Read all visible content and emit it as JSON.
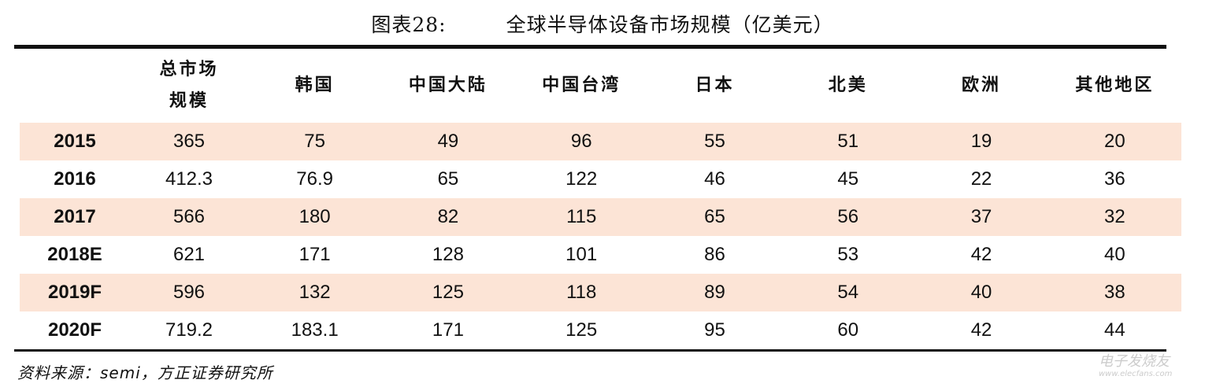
{
  "title": {
    "label": "图表28:",
    "text": "全球半导体设备市场规模（亿美元）"
  },
  "table": {
    "headers": [
      "",
      "总市场规模",
      "韩国",
      "中国大陆",
      "中国台湾",
      "日本",
      "北美",
      "欧洲",
      "其他地区"
    ],
    "rows": [
      [
        "2015",
        "365",
        "75",
        "49",
        "96",
        "55",
        "51",
        "19",
        "20"
      ],
      [
        "2016",
        "412.3",
        "76.9",
        "65",
        "122",
        "46",
        "45",
        "22",
        "36"
      ],
      [
        "2017",
        "566",
        "180",
        "82",
        "115",
        "65",
        "56",
        "37",
        "32"
      ],
      [
        "2018E",
        "621",
        "171",
        "128",
        "101",
        "86",
        "53",
        "42",
        "40"
      ],
      [
        "2019F",
        "596",
        "132",
        "125",
        "118",
        "89",
        "54",
        "40",
        "38"
      ],
      [
        "2020F",
        "719.2",
        "183.1",
        "171",
        "125",
        "95",
        "60",
        "42",
        "44"
      ]
    ],
    "stripe_color": "#fce4d6"
  },
  "source": "资料来源：semi，方正证券研究所",
  "watermark": {
    "name": "电子发烧友",
    "url": "www.elecfans.com"
  }
}
